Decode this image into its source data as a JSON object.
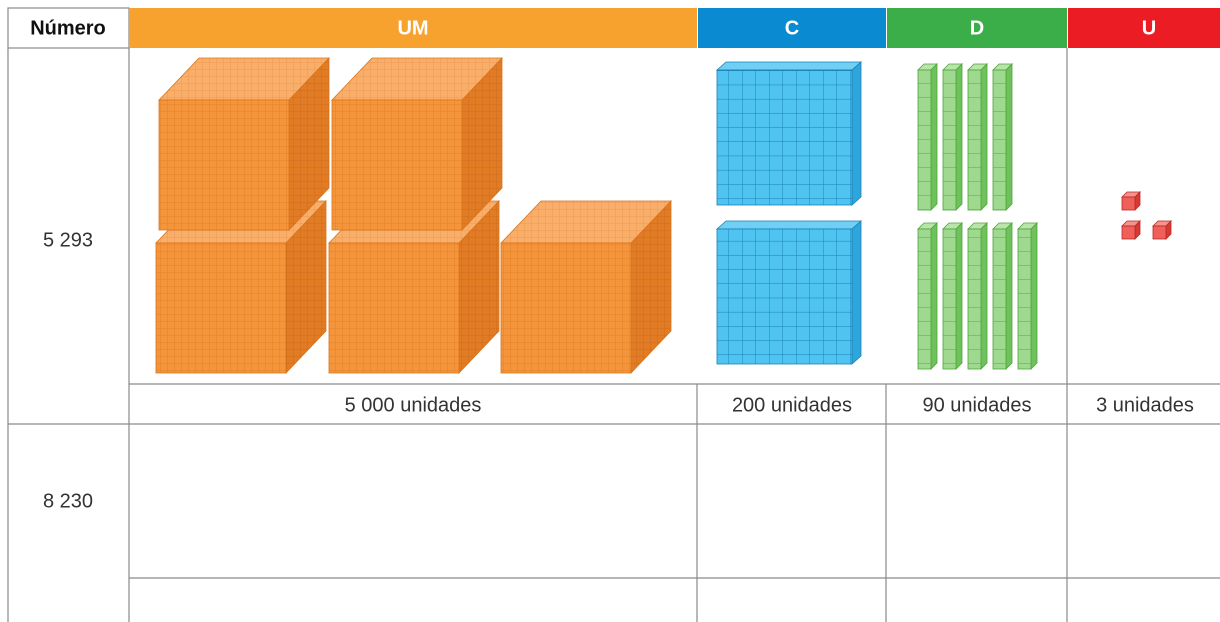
{
  "header": {
    "columns": [
      "Número",
      "UM",
      "C",
      "D",
      "U"
    ]
  },
  "rows": [
    {
      "number": "5 293",
      "cells": [
        "5 000 unidades",
        "200 unidades",
        "90 unidades",
        "3 unidades"
      ]
    },
    {
      "number": "8 230"
    }
  ]
}
